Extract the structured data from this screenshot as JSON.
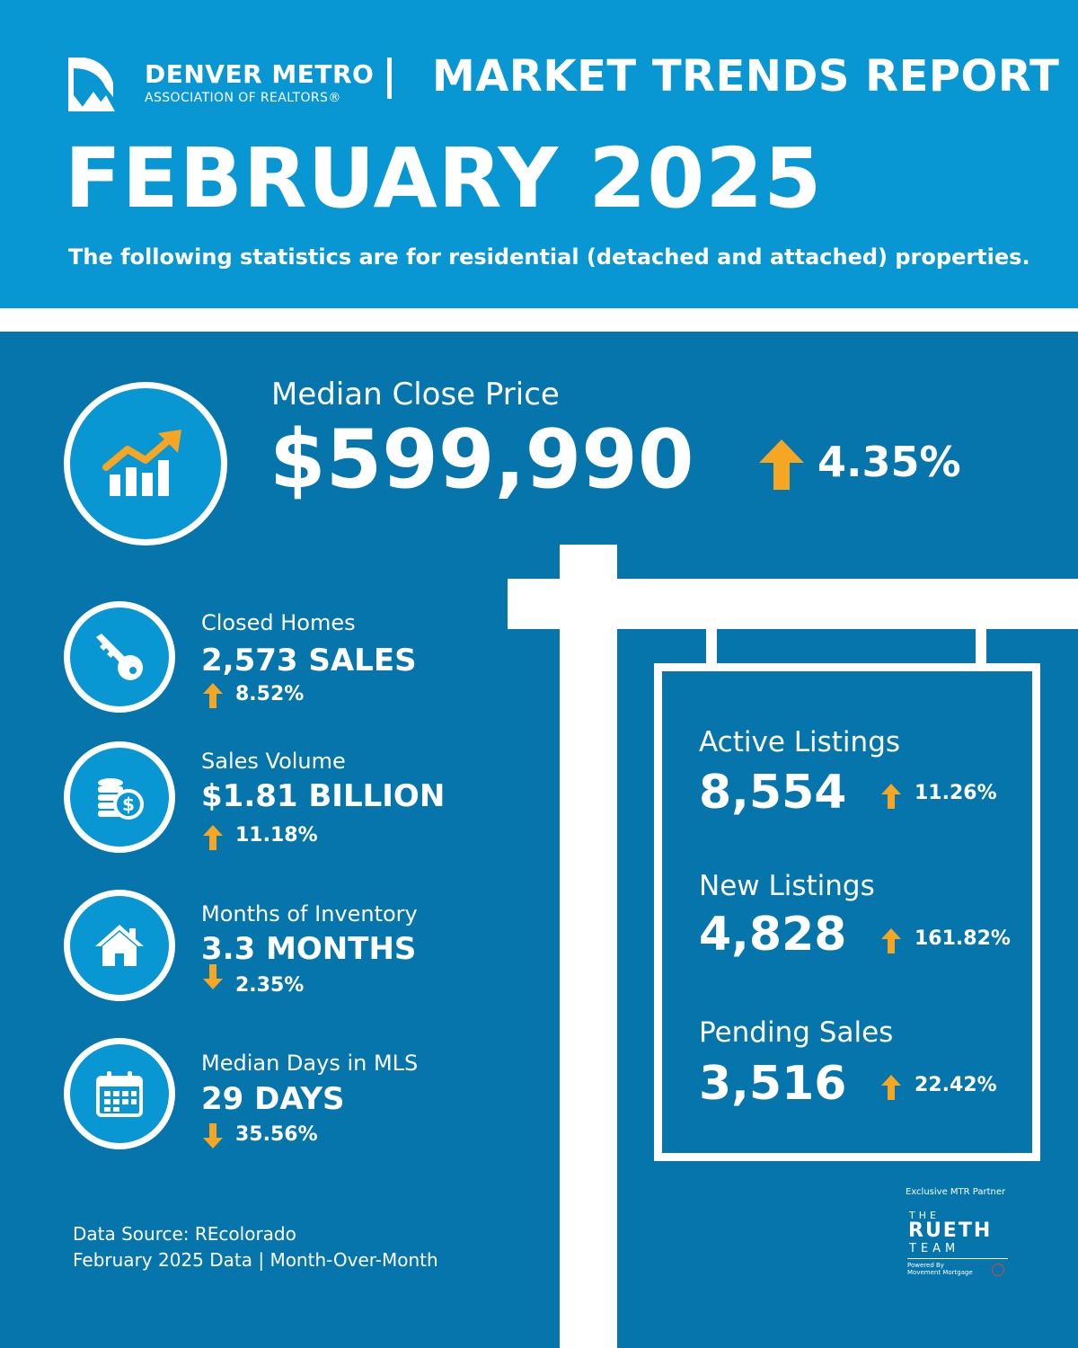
{
  "header": {
    "brand_name": "DENVER METRO",
    "brand_sub": "ASSOCIATION OF REALTORS®",
    "report_title": "MARKET TRENDS REPORT",
    "month_title": "FEBRUARY 2025",
    "subtitle": "The following statistics are for residential (detached and attached) properties."
  },
  "colors": {
    "header_blue": "#0897d3",
    "body_blue": "#0575ab",
    "arrow_orange": "#f5a623",
    "white": "#ffffff"
  },
  "median_price": {
    "label": "Median Close Price",
    "value": "$599,990",
    "direction": "up",
    "change": "4.35%",
    "icon": "growth-chart-icon"
  },
  "stats": [
    {
      "label": "Closed Homes",
      "value": "2,573 SALES",
      "direction": "up",
      "change": "8.52%",
      "icon": "key-icon"
    },
    {
      "label": "Sales Volume",
      "value": "$1.81 BILLION",
      "direction": "up",
      "change": "11.18%",
      "icon": "coins-dollar-icon"
    },
    {
      "label": "Months of Inventory",
      "value": "3.3 MONTHS",
      "direction": "down",
      "change": "2.35%",
      "icon": "house-icon"
    },
    {
      "label": "Median Days in MLS",
      "value": "29 DAYS",
      "direction": "down",
      "change": "35.56%",
      "icon": "calendar-icon"
    }
  ],
  "sign": [
    {
      "label": "Active Listings",
      "value": "8,554",
      "direction": "up",
      "change": "11.26%"
    },
    {
      "label": "New Listings",
      "value": "4,828",
      "direction": "up",
      "change": "161.82%"
    },
    {
      "label": "Pending Sales",
      "value": "3,516",
      "direction": "up",
      "change": "22.42%"
    }
  ],
  "footer": {
    "source": "Data Source: REcolorado",
    "period": "February 2025 Data | Month-Over-Month"
  },
  "partner": {
    "label": "Exclusive MTR Partner",
    "the": "THE",
    "name": "RUETH",
    "team": "TEAM",
    "powered_line1": "Powered By",
    "powered_line2": "Movement Mortgage"
  }
}
